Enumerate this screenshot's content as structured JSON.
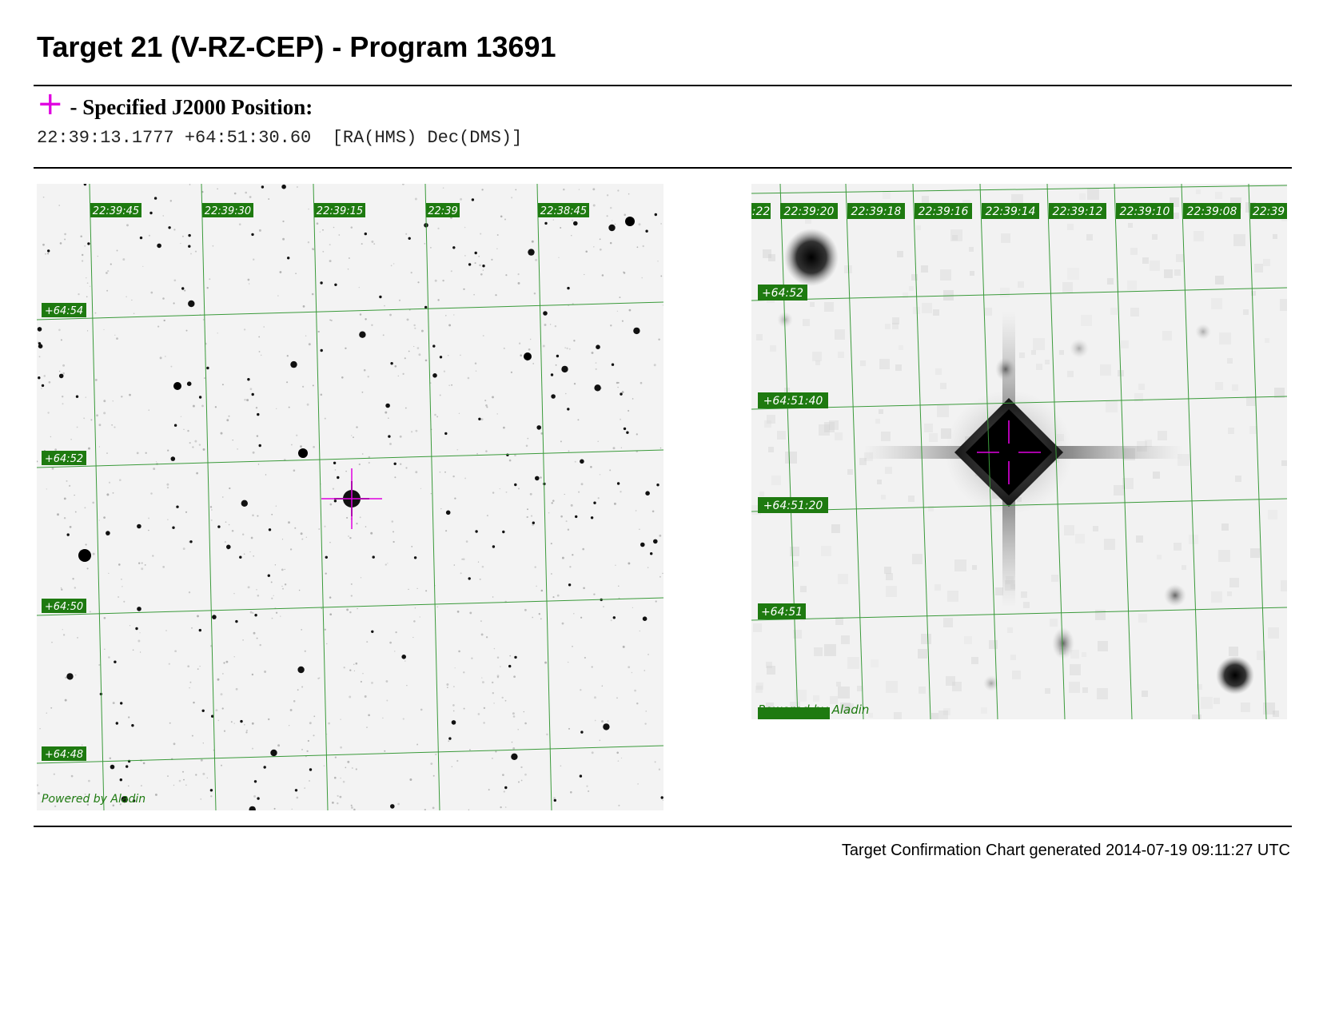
{
  "page": {
    "title": "Target 21 (V-RZ-CEP) - Program 13691",
    "legend_label": "- Specified J2000 Position:",
    "legend_symbol": "+",
    "position_text": "22:39:13.1777 +64:51:30.60  [RA(HMS) Dec(DMS)]",
    "footer": "Target Confirmation Chart generated 2014-07-19 09:11:27 UTC"
  },
  "colors": {
    "marker": "#e000e0",
    "grid": "#3a9a3a",
    "label_bg": "#1e7a10",
    "label_text": "#ffffff"
  },
  "wide_view": {
    "ra_labels": [
      "22:39:45",
      "22:39:30",
      "22:39:15",
      "22:39",
      "22:38:45"
    ],
    "dec_labels": [
      "+64:54",
      "+64:52",
      "+64:50",
      "+64:48"
    ],
    "credit": "Powered by Aladin"
  },
  "zoom_view": {
    "ra_labels": [
      ":22",
      "22:39:20",
      "22:39:18",
      "22:39:16",
      "22:39:14",
      "22:39:12",
      "22:39:10",
      "22:39:08",
      "22:39"
    ],
    "dec_labels": [
      "+64:52",
      "+64:51:40",
      "+64:51:20",
      "+64:51"
    ],
    "credit": "Powered by Aladin"
  }
}
